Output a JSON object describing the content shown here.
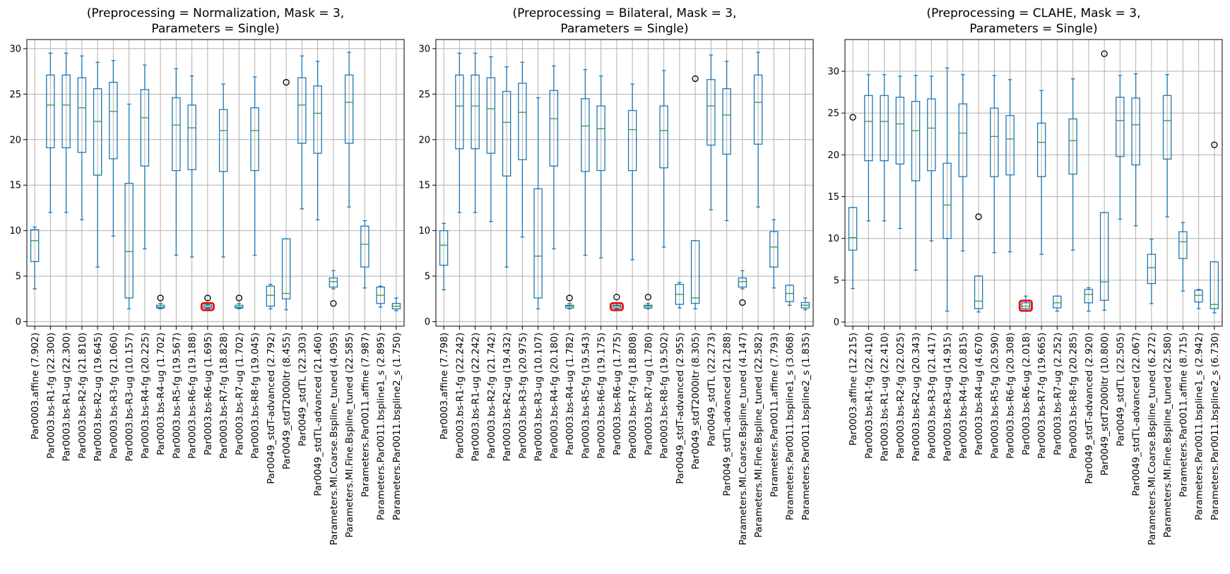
{
  "chart_data": [
    {
      "type": "box",
      "title": "(Preprocessing = Normalization, Mask = 3,\nParameters = Single)",
      "xlabel": "",
      "ylabel": "",
      "ylim": [
        -0.5,
        31
      ],
      "yticks": [
        0,
        5,
        10,
        15,
        20,
        25,
        30
      ],
      "grid": true,
      "categories": [
        "Par0003.affine (7.902)",
        "Par0003.bs-R1-fg (22.300)",
        "Par0003.bs-R1-ug (22.300)",
        "Par0003.bs-R2-fg (21.810)",
        "Par0003.bs-R2-ug (19.645)",
        "Par0003.bs-R3-fg (21.060)",
        "Par0003.bs-R3-ug (10.157)",
        "Par0003.bs-R4-fg (20.225)",
        "Par0003.bs-R4-ug (1.702)",
        "Par0003.bs-R5-fg (19.567)",
        "Par0003.bs-R6-fg (19.188)",
        "Par0003.bs-R6-ug (1.695)",
        "Par0003.bs-R7-fg (18.828)",
        "Par0003.bs-R7-ug (1.702)",
        "Par0003.bs-R8-fg (19.045)",
        "Par0049_stdT-advanced (2.792)",
        "Par0049_stdT2000itr (8.455)",
        "Par0049_stdTL (22.303)",
        "Par0049_stdTL-advanced (21.460)",
        "Parameters.MI.Coarse.Bspline_tuned (4.095)",
        "Parameters.MI.Fine.Bspline_tuned (22.585)",
        "Parameters.Par0011.affine (7.987)",
        "Parameters.Par0011.bspline1_s (2.895)",
        "Parameters.Par0011.bspline2_s (1.750)"
      ],
      "boxes": [
        {
          "whislo": 3.6,
          "q1": 6.6,
          "med": 8.9,
          "q3": 10.1,
          "whishi": 10.4,
          "fliers": []
        },
        {
          "whislo": 12.0,
          "q1": 19.1,
          "med": 23.8,
          "q3": 27.1,
          "whishi": 29.5,
          "fliers": []
        },
        {
          "whislo": 12.0,
          "q1": 19.1,
          "med": 23.8,
          "q3": 27.1,
          "whishi": 29.5,
          "fliers": []
        },
        {
          "whislo": 11.2,
          "q1": 18.6,
          "med": 23.5,
          "q3": 26.8,
          "whishi": 29.2,
          "fliers": []
        },
        {
          "whislo": 6.0,
          "q1": 16.1,
          "med": 22.0,
          "q3": 25.6,
          "whishi": 28.5,
          "fliers": []
        },
        {
          "whislo": 9.4,
          "q1": 17.9,
          "med": 23.1,
          "q3": 26.3,
          "whishi": 28.7,
          "fliers": []
        },
        {
          "whislo": 1.4,
          "q1": 2.6,
          "med": 7.7,
          "q3": 15.2,
          "whishi": 23.9,
          "fliers": []
        },
        {
          "whislo": 8.0,
          "q1": 17.1,
          "med": 22.4,
          "q3": 25.5,
          "whishi": 28.2,
          "fliers": []
        },
        {
          "whislo": 1.4,
          "q1": 1.5,
          "med": 1.6,
          "q3": 1.8,
          "whishi": 2.0,
          "fliers": [
            2.6
          ]
        },
        {
          "whislo": 7.3,
          "q1": 16.6,
          "med": 21.6,
          "q3": 24.6,
          "whishi": 27.8,
          "fliers": []
        },
        {
          "whislo": 7.1,
          "q1": 16.7,
          "med": 21.3,
          "q3": 23.8,
          "whishi": 27.0,
          "fliers": []
        },
        {
          "whislo": 1.4,
          "q1": 1.5,
          "med": 1.6,
          "q3": 1.8,
          "whishi": 1.9,
          "fliers": [
            2.6
          ],
          "highlight": true
        },
        {
          "whislo": 7.1,
          "q1": 16.5,
          "med": 21.0,
          "q3": 23.3,
          "whishi": 26.1,
          "fliers": []
        },
        {
          "whislo": 1.4,
          "q1": 1.5,
          "med": 1.6,
          "q3": 1.8,
          "whishi": 2.0,
          "fliers": [
            2.6
          ]
        },
        {
          "whislo": 7.3,
          "q1": 16.6,
          "med": 21.0,
          "q3": 23.5,
          "whishi": 26.9,
          "fliers": []
        },
        {
          "whislo": 1.4,
          "q1": 1.7,
          "med": 2.9,
          "q3": 3.9,
          "whishi": 4.1,
          "fliers": []
        },
        {
          "whislo": 1.3,
          "q1": 2.5,
          "med": 3.1,
          "q3": 9.1,
          "whishi": 9.1,
          "fliers": [
            26.3
          ]
        },
        {
          "whislo": 12.4,
          "q1": 19.6,
          "med": 23.8,
          "q3": 26.8,
          "whishi": 29.2,
          "fliers": []
        },
        {
          "whislo": 11.2,
          "q1": 18.5,
          "med": 22.9,
          "q3": 25.9,
          "whishi": 28.6,
          "fliers": []
        },
        {
          "whislo": 3.6,
          "q1": 3.8,
          "med": 4.4,
          "q3": 4.8,
          "whishi": 5.6,
          "fliers": [
            2.0
          ]
        },
        {
          "whislo": 12.6,
          "q1": 19.6,
          "med": 24.1,
          "q3": 27.1,
          "whishi": 29.6,
          "fliers": []
        },
        {
          "whislo": 3.7,
          "q1": 6.0,
          "med": 8.5,
          "q3": 10.5,
          "whishi": 11.1,
          "fliers": []
        },
        {
          "whislo": 1.6,
          "q1": 2.0,
          "med": 2.9,
          "q3": 3.8,
          "whishi": 3.9,
          "fliers": []
        },
        {
          "whislo": 1.2,
          "q1": 1.4,
          "med": 1.7,
          "q3": 2.0,
          "whishi": 2.6,
          "fliers": []
        }
      ]
    },
    {
      "type": "box",
      "title": "(Preprocessing = Bilateral, Mask = 3,\nParameters = Single)",
      "xlabel": "",
      "ylabel": "",
      "ylim": [
        -0.5,
        31
      ],
      "yticks": [
        0,
        5,
        10,
        15,
        20,
        25,
        30
      ],
      "grid": true,
      "categories": [
        "Par0003.affine (7.798)",
        "Par0003.bs-R1-fg (22.242)",
        "Par0003.bs-R1-ug (22.242)",
        "Par0003.bs-R2-fg (21.742)",
        "Par0003.bs-R2-ug (19.432)",
        "Par0003.bs-R3-fg (20.975)",
        "Par0003.bs-R3-ug (10.107)",
        "Par0003.bs-R4-fg (20.180)",
        "Par0003.bs-R4-ug (1.782)",
        "Par0003.bs-R5-fg (19.543)",
        "Par0003.bs-R6-fg (19.175)",
        "Par0003.bs-R6-ug (1.775)",
        "Par0003.bs-R7-fg (18.808)",
        "Par0003.bs-R7-ug (1.780)",
        "Par0003.bs-R8-fg (19.502)",
        "Par0049_stdT-advanced (2.955)",
        "Par0049_stdT2000itr (8.305)",
        "Par0049_stdTL (22.273)",
        "Par0049_stdTL-advanced (21.288)",
        "Parameters.MI.Coarse.Bspline_tuned (4.147)",
        "Parameters.MI.Fine.Bspline_tuned (22.582)",
        "Parameters.Par0011.affine (7.793)",
        "Parameters.Par0011.bspline1_s (3.068)",
        "Parameters.Par0011.bspline2_s (1.835)"
      ],
      "boxes": [
        {
          "whislo": 3.5,
          "q1": 6.2,
          "med": 8.4,
          "q3": 10.0,
          "whishi": 10.8,
          "fliers": []
        },
        {
          "whislo": 12.0,
          "q1": 19.0,
          "med": 23.7,
          "q3": 27.1,
          "whishi": 29.5,
          "fliers": []
        },
        {
          "whislo": 12.0,
          "q1": 19.0,
          "med": 23.7,
          "q3": 27.1,
          "whishi": 29.5,
          "fliers": []
        },
        {
          "whislo": 11.0,
          "q1": 18.5,
          "med": 23.4,
          "q3": 26.8,
          "whishi": 29.1,
          "fliers": []
        },
        {
          "whislo": 6.0,
          "q1": 16.0,
          "med": 21.9,
          "q3": 25.3,
          "whishi": 28.0,
          "fliers": []
        },
        {
          "whislo": 9.3,
          "q1": 17.8,
          "med": 23.0,
          "q3": 26.2,
          "whishi": 28.5,
          "fliers": []
        },
        {
          "whislo": 1.4,
          "q1": 2.6,
          "med": 7.2,
          "q3": 14.6,
          "whishi": 24.6,
          "fliers": []
        },
        {
          "whislo": 8.0,
          "q1": 17.1,
          "med": 22.3,
          "q3": 25.4,
          "whishi": 28.1,
          "fliers": []
        },
        {
          "whislo": 1.4,
          "q1": 1.5,
          "med": 1.7,
          "q3": 1.8,
          "whishi": 2.0,
          "fliers": [
            2.6
          ]
        },
        {
          "whislo": 7.3,
          "q1": 16.5,
          "med": 21.5,
          "q3": 24.5,
          "whishi": 27.7,
          "fliers": []
        },
        {
          "whislo": 7.0,
          "q1": 16.6,
          "med": 21.2,
          "q3": 23.7,
          "whishi": 27.0,
          "fliers": []
        },
        {
          "whislo": 1.4,
          "q1": 1.5,
          "med": 1.7,
          "q3": 1.8,
          "whishi": 2.0,
          "fliers": [
            2.7
          ],
          "highlight": true
        },
        {
          "whislo": 6.8,
          "q1": 16.6,
          "med": 21.1,
          "q3": 23.2,
          "whishi": 26.1,
          "fliers": []
        },
        {
          "whislo": 1.4,
          "q1": 1.5,
          "med": 1.7,
          "q3": 1.8,
          "whishi": 2.0,
          "fliers": [
            2.7
          ]
        },
        {
          "whislo": 8.2,
          "q1": 16.9,
          "med": 21.0,
          "q3": 23.7,
          "whishi": 27.6,
          "fliers": []
        },
        {
          "whislo": 1.5,
          "q1": 1.9,
          "med": 3.0,
          "q3": 4.1,
          "whishi": 4.3,
          "fliers": []
        },
        {
          "whislo": 1.4,
          "q1": 2.0,
          "med": 2.6,
          "q3": 8.9,
          "whishi": 8.9,
          "fliers": [
            26.7
          ]
        },
        {
          "whislo": 12.3,
          "q1": 19.4,
          "med": 23.7,
          "q3": 26.6,
          "whishi": 29.3,
          "fliers": []
        },
        {
          "whislo": 11.1,
          "q1": 18.4,
          "med": 22.7,
          "q3": 25.6,
          "whishi": 28.6,
          "fliers": []
        },
        {
          "whislo": 3.6,
          "q1": 3.8,
          "med": 4.4,
          "q3": 4.8,
          "whishi": 5.6,
          "fliers": [
            2.1
          ]
        },
        {
          "whislo": 12.6,
          "q1": 19.5,
          "med": 24.1,
          "q3": 27.1,
          "whishi": 29.6,
          "fliers": []
        },
        {
          "whislo": 3.7,
          "q1": 6.0,
          "med": 8.2,
          "q3": 9.9,
          "whishi": 11.2,
          "fliers": []
        },
        {
          "whislo": 1.8,
          "q1": 2.2,
          "med": 3.1,
          "q3": 4.0,
          "whishi": 4.0,
          "fliers": []
        },
        {
          "whislo": 1.3,
          "q1": 1.5,
          "med": 1.8,
          "q3": 2.1,
          "whishi": 2.6,
          "fliers": []
        }
      ]
    },
    {
      "type": "box",
      "title": "(Preprocessing = CLAHE, Mask = 3,\nParameters = Single)",
      "xlabel": "",
      "ylabel": "",
      "ylim": [
        -0.5,
        33.8
      ],
      "yticks": [
        0,
        5,
        10,
        15,
        20,
        25,
        30
      ],
      "grid": true,
      "categories": [
        "Par0003.affine (12.215)",
        "Par0003.bs-R1-fg (22.410)",
        "Par0003.bs-R1-ug (22.410)",
        "Par0003.bs-R2-fg (22.025)",
        "Par0003.bs-R2-ug (20.343)",
        "Par0003.bs-R3-fg (21.417)",
        "Par0003.bs-R3-ug (14.915)",
        "Par0003.bs-R4-fg (20.815)",
        "Par0003.bs-R4-ug (4.670)",
        "Par0003.bs-R5-fg (20.590)",
        "Par0003.bs-R6-fg (20.308)",
        "Par0003.bs-R6-ug (2.018)",
        "Par0003.bs-R7-fg (19.665)",
        "Par0003.bs-R7-ug (2.252)",
        "Par0003.bs-R8-fg (20.285)",
        "Par0049_stdT-advanced (2.920)",
        "Par0049_stdT2000itr (10.800)",
        "Par0049_stdTL (22.505)",
        "Par0049_stdTL-advanced (22.067)",
        "Parameters.MI.Coarse.Bspline_tuned (6.272)",
        "Parameters.MI.Fine.Bspline_tuned (22.580)",
        "Parameters.Par0011.affine (8.715)",
        "Parameters.Par0011.bspline1_s (2.942)",
        "Parameters.Par0011.bspline2_s (6.730)"
      ],
      "boxes": [
        {
          "whislo": 4.0,
          "q1": 8.6,
          "med": 10.1,
          "q3": 13.7,
          "whishi": 13.7,
          "fliers": [
            24.5
          ]
        },
        {
          "whislo": 12.1,
          "q1": 19.3,
          "med": 24.0,
          "q3": 27.1,
          "whishi": 29.6,
          "fliers": []
        },
        {
          "whislo": 12.1,
          "q1": 19.3,
          "med": 24.0,
          "q3": 27.1,
          "whishi": 29.6,
          "fliers": []
        },
        {
          "whislo": 11.2,
          "q1": 18.9,
          "med": 23.7,
          "q3": 26.9,
          "whishi": 29.4,
          "fliers": []
        },
        {
          "whislo": 6.2,
          "q1": 16.9,
          "med": 22.9,
          "q3": 26.4,
          "whishi": 29.5,
          "fliers": []
        },
        {
          "whislo": 9.7,
          "q1": 18.1,
          "med": 23.2,
          "q3": 26.7,
          "whishi": 29.4,
          "fliers": []
        },
        {
          "whislo": 1.3,
          "q1": 10.0,
          "med": 14.0,
          "q3": 19.0,
          "whishi": 30.4,
          "fliers": []
        },
        {
          "whislo": 8.5,
          "q1": 17.4,
          "med": 22.6,
          "q3": 26.1,
          "whishi": 29.6,
          "fliers": []
        },
        {
          "whislo": 1.2,
          "q1": 1.6,
          "med": 2.5,
          "q3": 5.5,
          "whishi": 5.5,
          "fliers": [
            12.6
          ]
        },
        {
          "whislo": 8.3,
          "q1": 17.4,
          "med": 22.2,
          "q3": 25.6,
          "whishi": 29.5,
          "fliers": []
        },
        {
          "whislo": 8.4,
          "q1": 17.6,
          "med": 21.9,
          "q3": 24.7,
          "whishi": 29.0,
          "fliers": []
        },
        {
          "whislo": 1.3,
          "q1": 1.6,
          "med": 1.9,
          "q3": 2.3,
          "whishi": 3.1,
          "fliers": [],
          "highlight": true
        },
        {
          "whislo": 8.1,
          "q1": 17.4,
          "med": 21.5,
          "q3": 23.8,
          "whishi": 27.7,
          "fliers": []
        },
        {
          "whislo": 1.3,
          "q1": 1.7,
          "med": 2.3,
          "q3": 3.1,
          "whishi": 3.1,
          "fliers": []
        },
        {
          "whislo": 8.6,
          "q1": 17.7,
          "med": 21.7,
          "q3": 24.3,
          "whishi": 29.1,
          "fliers": []
        },
        {
          "whislo": 1.3,
          "q1": 2.3,
          "med": 3.3,
          "q3": 3.9,
          "whishi": 4.1,
          "fliers": []
        },
        {
          "whislo": 1.4,
          "q1": 2.6,
          "med": 4.8,
          "q3": 13.1,
          "whishi": 13.1,
          "fliers": [
            32.1
          ]
        },
        {
          "whislo": 12.3,
          "q1": 19.8,
          "med": 24.1,
          "q3": 26.9,
          "whishi": 29.5,
          "fliers": []
        },
        {
          "whislo": 11.5,
          "q1": 18.8,
          "med": 23.6,
          "q3": 26.8,
          "whishi": 29.7,
          "fliers": []
        },
        {
          "whislo": 2.2,
          "q1": 4.6,
          "med": 6.5,
          "q3": 8.1,
          "whishi": 9.9,
          "fliers": []
        },
        {
          "whislo": 12.6,
          "q1": 19.5,
          "med": 24.1,
          "q3": 27.1,
          "whishi": 29.6,
          "fliers": []
        },
        {
          "whislo": 3.7,
          "q1": 7.6,
          "med": 9.6,
          "q3": 10.8,
          "whishi": 11.9,
          "fliers": []
        },
        {
          "whislo": 1.6,
          "q1": 2.4,
          "med": 3.2,
          "q3": 3.8,
          "whishi": 3.9,
          "fliers": []
        },
        {
          "whislo": 1.1,
          "q1": 1.6,
          "med": 2.1,
          "q3": 7.2,
          "whishi": 7.2,
          "fliers": [
            21.2
          ]
        }
      ]
    }
  ],
  "colors": {
    "box": "#1f77b4",
    "median": "#2ca02c",
    "grid": "#b0b0b0",
    "highlight": "#e8151b"
  }
}
